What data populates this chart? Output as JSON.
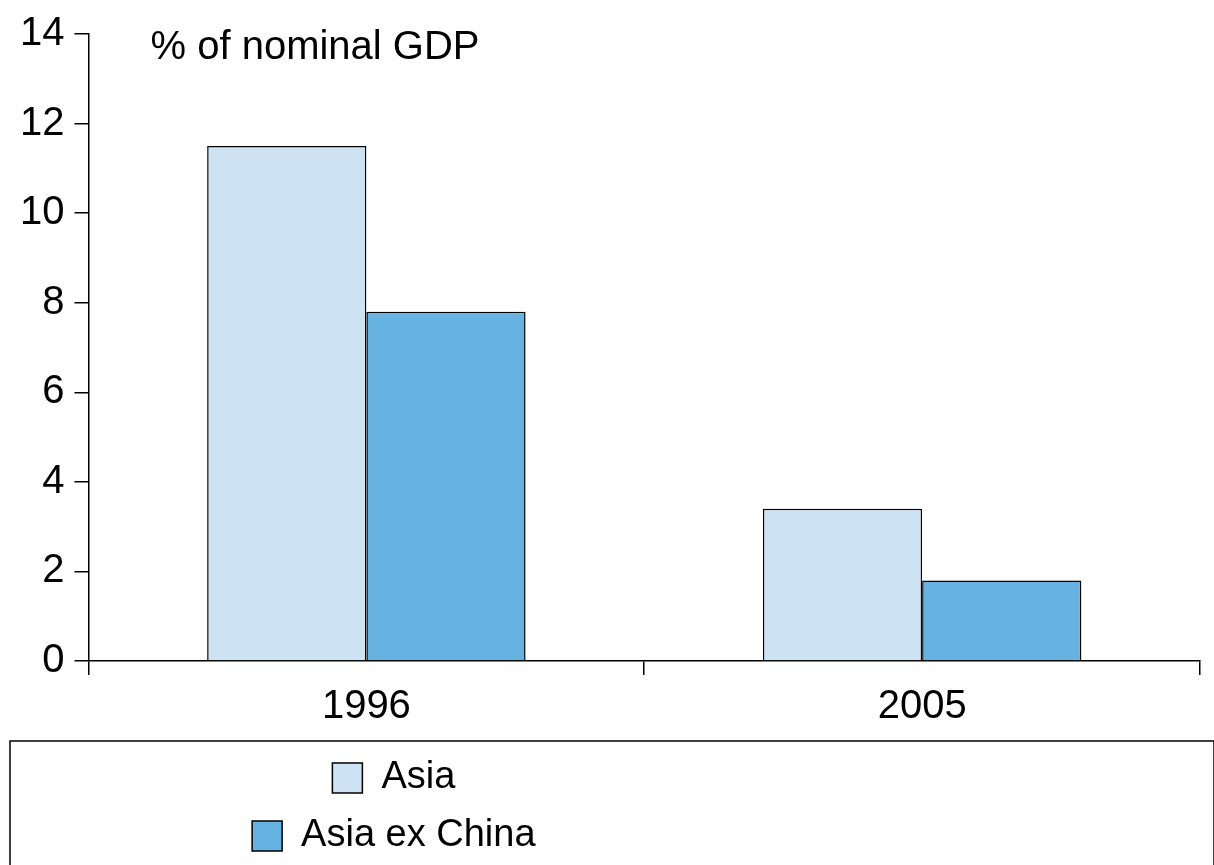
{
  "chart_data": {
    "type": "bar",
    "ylabel": "% of nominal GDP",
    "categories": [
      "1996",
      "2005"
    ],
    "series": [
      {
        "name": "Asia",
        "color": "#cde3f3",
        "values": [
          11.5,
          3.4
        ]
      },
      {
        "name": "Asia ex China",
        "color": "#66b2e0",
        "values": [
          7.8,
          1.8
        ]
      }
    ],
    "ylim": [
      0,
      14
    ],
    "yticks": [
      0,
      2,
      4,
      6,
      8,
      10,
      12,
      14
    ],
    "grid": false,
    "legend": "bottom"
  }
}
